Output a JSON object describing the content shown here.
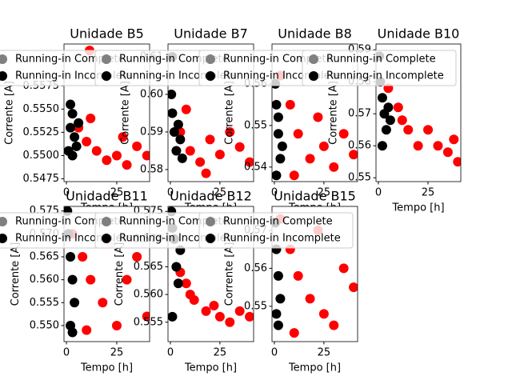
{
  "chart_data": [
    {
      "type": "scatter",
      "title": "Unidade B5",
      "xlabel": "Tempo [h]",
      "ylabel": "Corrente [A]",
      "legend": "upper right",
      "xlim": [
        -1.2,
        41.3
      ],
      "xticks": [
        0,
        25
      ],
      "ylim": [
        0.5472,
        0.562
      ],
      "yticks": [
        0.5475,
        {
          "value": 0.55,
          "label": "0.5500"
        },
        0.5525,
        {
          "value": 0.555,
          "label": "0.5550"
        },
        0.5575
      ],
      "series": [
        {
          "name": "Running-in Complete",
          "color": "#ff0000",
          "legend_color": "#808080",
          "x": [
            6,
            10,
            15,
            20,
            25,
            30,
            35,
            40,
            12,
            28,
            11.5
          ],
          "values": [
            0.553,
            0.5515,
            0.5505,
            0.5495,
            0.55,
            0.549,
            0.551,
            0.55,
            0.554,
            0.552,
            0.5613
          ]
        },
        {
          "name": "Running-in Incomplete",
          "color": "#000000",
          "legend_color": "#000000",
          "x": [
            1,
            2,
            3,
            4,
            5,
            2,
            3,
            6
          ],
          "values": [
            0.5505,
            0.553,
            0.5545,
            0.552,
            0.551,
            0.5555,
            0.55,
            0.5535
          ]
        }
      ]
    },
    {
      "type": "scatter",
      "title": "Unidade B7",
      "xlabel": "Tempo [h]",
      "ylabel": "Corrente [A]",
      "legend": "upper right",
      "xlim": [
        -1.2,
        42
      ],
      "xticks": [
        0,
        25
      ],
      "ylim": [
        0.5768,
        0.6134
      ],
      "yticks": [
        0.58,
        0.59,
        {
          "value": 0.6,
          "label": "0.60"
        },
        0.61
      ],
      "series": [
        {
          "name": "Running-in Complete",
          "color": "#ff0000",
          "legend_color": "#808080",
          "x": [
            5,
            10,
            15,
            20,
            25,
            30,
            35,
            40,
            8,
            18
          ],
          "values": [
            0.59,
            0.585,
            0.582,
            0.588,
            0.584,
            0.59,
            0.586,
            0.582,
            0.596,
            0.579
          ]
        },
        {
          "name": "Running-in Incomplete",
          "color": "#000000",
          "legend_color": "#000000",
          "x": [
            0.5,
            1,
            2,
            3,
            4,
            5,
            1,
            6
          ],
          "values": [
            0.6,
            0.595,
            0.59,
            0.585,
            0.592,
            0.588,
            0.61,
            0.583
          ]
        }
      ]
    },
    {
      "type": "scatter",
      "title": "Unidade B8",
      "xlabel": "Tempo [h]",
      "ylabel": "Corrente [A]",
      "legend": "upper right",
      "xlim": [
        -1.2,
        42
      ],
      "xticks": [
        0,
        25
      ],
      "ylim": [
        0.5365,
        0.5696
      ],
      "yticks": [
        0.54,
        0.55,
        0.56
      ],
      "series": [
        {
          "name": "Running-in Complete",
          "color": "#ff0000",
          "legend_color": "#808080",
          "x": [
            3,
            8,
            12,
            18,
            25,
            30,
            35,
            40,
            10,
            22
          ],
          "values": [
            0.562,
            0.555,
            0.548,
            0.542,
            0.545,
            0.54,
            0.548,
            0.543,
            0.538,
            0.552
          ]
        },
        {
          "name": "Running-in Incomplete",
          "color": "#000000",
          "legend_color": "#000000",
          "x": [
            0.5,
            1,
            2,
            3,
            1,
            2,
            4
          ],
          "values": [
            0.56,
            0.555,
            0.548,
            0.542,
            0.538,
            0.552,
            0.545
          ]
        }
      ]
    },
    {
      "type": "scatter",
      "title": "Unidade B10",
      "xlabel": "Tempo [h]",
      "ylabel": "Corrente [A]",
      "legend": "upper right",
      "xlim": [
        -1.2,
        41.5
      ],
      "xticks": [
        0,
        25
      ],
      "ylim": [
        0.5488,
        0.5918
      ],
      "yticks": [
        0.55,
        0.56,
        0.57,
        0.58,
        0.59
      ],
      "series": [
        {
          "name": "Running-in Complete",
          "color": "#ff0000",
          "legend_color": "#808080",
          "x": [
            5,
            10,
            15,
            20,
            25,
            30,
            35,
            40,
            12,
            38
          ],
          "values": [
            0.578,
            0.572,
            0.565,
            0.56,
            0.565,
            0.56,
            0.558,
            0.555,
            0.568,
            0.562
          ]
        },
        {
          "name": "Running-in Incomplete",
          "color": "#000000",
          "legend_color": "#000000",
          "x": [
            0.5,
            1,
            2,
            3,
            4,
            5,
            2,
            6
          ],
          "values": [
            0.588,
            0.58,
            0.575,
            0.57,
            0.565,
            0.572,
            0.56,
            0.568
          ]
        }
      ]
    },
    {
      "type": "scatter",
      "title": "Unidade B11",
      "xlabel": "Tempo [h]",
      "ylabel": "Corrente [A]",
      "legend": "upper right",
      "xlim": [
        -1.2,
        41.3
      ],
      "xticks": [
        0,
        25
      ],
      "ylim": [
        0.5465,
        0.576
      ],
      "yticks": [
        {
          "value": 0.55,
          "label": "0.550"
        },
        0.555,
        {
          "value": 0.56,
          "label": "0.560"
        },
        0.565,
        {
          "value": 0.57,
          "label": "0.570"
        },
        0.575
      ],
      "series": [
        {
          "name": "Running-in Complete",
          "color": "#ff0000",
          "legend_color": "#808080",
          "x": [
            3,
            8,
            12,
            18,
            25,
            30,
            35,
            40,
            10,
            22
          ],
          "values": [
            0.57,
            0.565,
            0.56,
            0.555,
            0.55,
            0.56,
            0.565,
            0.552,
            0.549,
            0.568
          ]
        },
        {
          "name": "Running-in Incomplete",
          "color": "#000000",
          "legend_color": "#000000",
          "x": [
            0.5,
            1,
            2,
            3,
            4,
            2,
            3
          ],
          "values": [
            0.575,
            0.57,
            0.565,
            0.56,
            0.555,
            0.55,
            0.5485
          ]
        }
      ]
    },
    {
      "type": "scatter",
      "title": "Unidade B12",
      "xlabel": "Tempo [h]",
      "ylabel": "Corrente [A]",
      "legend": "upper right",
      "xlim": [
        -1.2,
        42
      ],
      "xticks": [
        0,
        25
      ],
      "ylim": [
        0.5515,
        0.5759
      ],
      "yticks": [
        0.555,
        {
          "value": 0.56,
          "label": "0.560"
        },
        0.565,
        {
          "value": 0.57,
          "label": "0.570"
        },
        0.575
      ],
      "series": [
        {
          "name": "Running-in Complete",
          "color": "#ff0000",
          "legend_color": "#808080",
          "x": [
            5,
            8,
            12,
            18,
            25,
            30,
            35,
            40,
            10,
            22
          ],
          "values": [
            0.564,
            0.562,
            0.559,
            0.557,
            0.556,
            0.555,
            0.557,
            0.556,
            0.56,
            0.558
          ]
        },
        {
          "name": "Running-in Incomplete",
          "color": "#000000",
          "legend_color": "#000000",
          "x": [
            0.5,
            1,
            2,
            3,
            4,
            5,
            1
          ],
          "values": [
            0.575,
            0.572,
            0.57,
            0.565,
            0.562,
            0.568,
            0.556
          ]
        }
      ]
    },
    {
      "type": "scatter",
      "title": "Unidade B15",
      "xlabel": "Tempo [h]",
      "ylabel": "Corrente [A]",
      "legend": "upper right",
      "xlim": [
        -1.2,
        42
      ],
      "xticks": [
        0,
        25
      ],
      "ylim": [
        0.5407,
        0.5763
      ],
      "yticks": [
        0.55,
        0.56,
        0.57
      ],
      "series": [
        {
          "name": "Running-in Complete",
          "color": "#ff0000",
          "legend_color": "#808080",
          "x": [
            3,
            8,
            12,
            18,
            25,
            30,
            35,
            40,
            10,
            22
          ],
          "values": [
            0.573,
            0.565,
            0.558,
            0.552,
            0.548,
            0.545,
            0.56,
            0.555,
            0.543,
            0.57
          ]
        },
        {
          "name": "Running-in Incomplete",
          "color": "#000000",
          "legend_color": "#000000",
          "x": [
            0.5,
            1,
            2,
            3,
            1,
            2
          ],
          "values": [
            0.572,
            0.565,
            0.558,
            0.552,
            0.548,
            0.545
          ]
        }
      ]
    }
  ]
}
